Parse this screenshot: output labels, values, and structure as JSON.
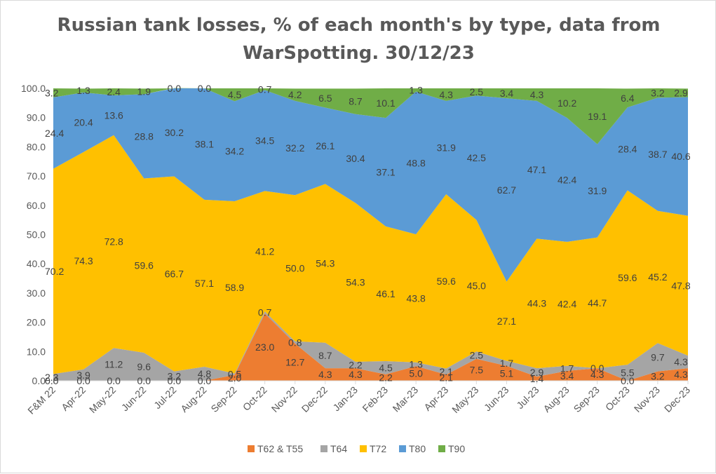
{
  "chart_data": {
    "type": "area",
    "title_line1": "Russian tank losses, % of each month's by type, data from",
    "title_line2": "WarSpotting. 30/12/23",
    "categories": [
      "F&M 22",
      "Apr-22",
      "May-22",
      "Jun-22",
      "Jul-22",
      "Aug-22",
      "Sep-22",
      "Oct-22",
      "Nov-22",
      "Dec-22",
      "Jan-23",
      "Feb-23",
      "Mar-23",
      "Apr-23",
      "May-23",
      "Jun-23",
      "Jul-23",
      "Aug-23",
      "Sep-23",
      "Oct-23",
      "Nov-23",
      "Dec-23"
    ],
    "y_ticks": [
      "0.0",
      "10.0",
      "20.0",
      "30.0",
      "40.0",
      "50.0",
      "60.0",
      "70.0",
      "80.0",
      "90.0",
      "100.0"
    ],
    "ylim": [
      0,
      100
    ],
    "stacked": true,
    "legend_position": "bottom",
    "series": [
      {
        "name": "T62 & T55",
        "color": "#ED7D31",
        "values": [
          0.0,
          0.0,
          0.0,
          0.0,
          0.0,
          0.0,
          2.0,
          23.0,
          12.7,
          4.3,
          4.3,
          2.2,
          5.0,
          2.1,
          7.5,
          5.1,
          1.4,
          3.4,
          4.3,
          0.0,
          3.2,
          4.3
        ]
      },
      {
        "name": "T64",
        "color": "#A5A5A5",
        "values": [
          2.3,
          3.9,
          11.2,
          9.6,
          3.2,
          4.8,
          0.5,
          0.7,
          0.8,
          8.7,
          2.2,
          4.5,
          1.3,
          2.1,
          2.5,
          1.7,
          2.9,
          1.7,
          0.0,
          5.5,
          9.7,
          4.3
        ]
      },
      {
        "name": "T72",
        "color": "#FFC000",
        "values": [
          70.2,
          74.3,
          72.8,
          59.6,
          66.7,
          57.1,
          58.9,
          41.2,
          50.0,
          54.3,
          54.3,
          46.1,
          43.8,
          59.6,
          45.0,
          27.1,
          44.3,
          42.4,
          44.7,
          59.6,
          45.2,
          47.8
        ]
      },
      {
        "name": "T80",
        "color": "#5B9BD5",
        "values": [
          24.4,
          20.4,
          13.6,
          28.8,
          30.2,
          38.1,
          34.2,
          34.5,
          32.2,
          26.1,
          30.4,
          37.1,
          48.8,
          31.9,
          42.5,
          62.7,
          47.1,
          42.4,
          31.9,
          28.4,
          38.7,
          40.6
        ]
      },
      {
        "name": "T90",
        "color": "#70AD47",
        "values": [
          3.2,
          1.3,
          2.4,
          1.9,
          0.0,
          0.0,
          4.5,
          0.7,
          4.2,
          6.5,
          8.7,
          10.1,
          1.3,
          4.3,
          2.5,
          3.4,
          4.3,
          10.2,
          19.1,
          6.4,
          3.2,
          2.9
        ]
      }
    ]
  }
}
